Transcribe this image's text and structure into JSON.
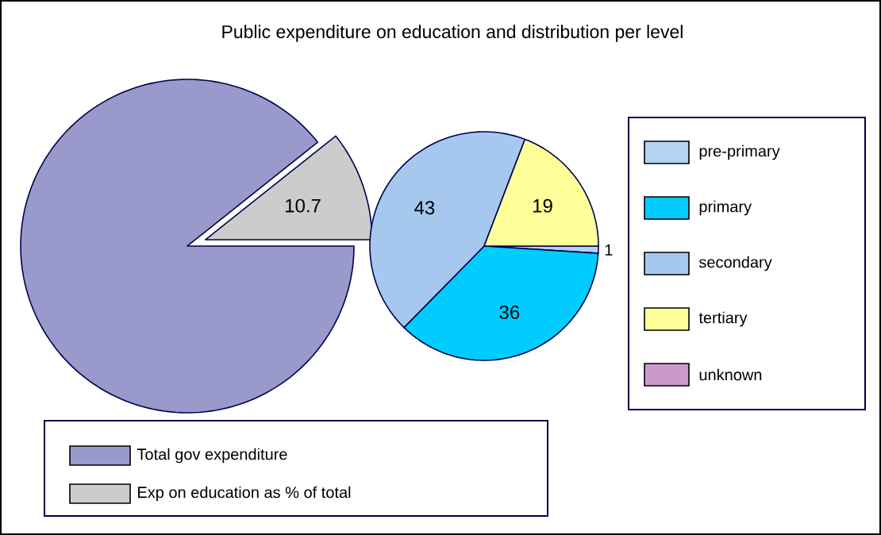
{
  "chart_data": [
    {
      "type": "pie",
      "title": "Public expenditure on education and distribution per level",
      "categories": [
        "Total gov expenditure",
        "Exp on education as % of total"
      ],
      "values": [
        89.3,
        10.7
      ],
      "colors": [
        "#9999cc",
        "#cccccc"
      ],
      "value_labels": [
        null,
        "10.7"
      ],
      "legend": "bottom"
    },
    {
      "type": "pie",
      "categories": [
        "pre-primary",
        "primary",
        "secondary",
        "tertiary",
        "unknown"
      ],
      "values": [
        1,
        36,
        43,
        19,
        0
      ],
      "colors": [
        "#b4d2f2",
        "#00ccff",
        "#a6c8ee",
        "#ffff99",
        "#cc99cc"
      ],
      "value_labels": [
        "1",
        "36",
        "43",
        "19",
        null
      ],
      "legend": "right"
    }
  ]
}
